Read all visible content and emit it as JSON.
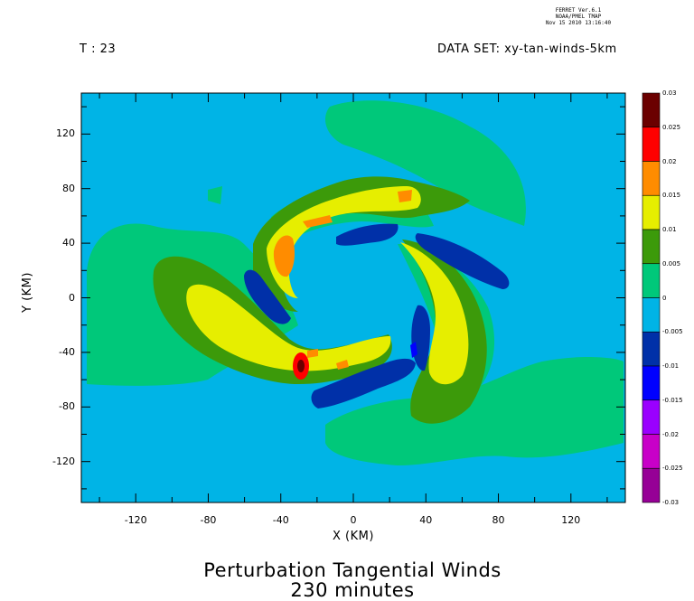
{
  "header": {
    "ferret_line1": "FERRET Ver.6.1",
    "ferret_line2": "NOAA/PMEL TMAP",
    "ferret_line3": "Nov 15 2010 13:16:40",
    "time_label": "T : 23",
    "dataset_label": "DATA SET: xy-tan-winds-5km"
  },
  "chart_data": {
    "type": "heatmap",
    "title": "Perturbation Tangential Winds",
    "subtitle": "230 minutes",
    "xlabel": "X (KM)",
    "ylabel": "Y (KM)",
    "xlim": [
      -150,
      150
    ],
    "ylim": [
      -150,
      150
    ],
    "x_ticks": [
      -120,
      -80,
      -40,
      0,
      40,
      80,
      120
    ],
    "y_ticks": [
      120,
      80,
      40,
      0,
      -40,
      -80,
      -120
    ],
    "x_tick_labels": [
      "-120",
      "-80",
      "-40",
      "0",
      "40",
      "80",
      "120"
    ],
    "y_tick_labels": [
      "120",
      "80",
      "40",
      "0",
      "-40",
      "-80",
      "-120"
    ],
    "colorbar": {
      "levels": [
        "0.03",
        "0.025",
        "0.02",
        "0.015",
        "0.01",
        "0.005",
        "0",
        "-0.005",
        "-0.01",
        "-0.015",
        "-0.02",
        "-0.025",
        "-0.03"
      ],
      "colors": [
        "#6b0000",
        "#ff0000",
        "#ff8c00",
        "#e6ee00",
        "#3c9a0a",
        "#00c87a",
        "#00b4e6",
        "#0030a8",
        "#0000ff",
        "#9a00ff",
        "#c800c8",
        "#960096"
      ]
    },
    "field_colors": {
      "background": "#00b4e6",
      "positive_weak": "#00c87a",
      "positive_mid": "#3c9a0a",
      "positive_strong": "#e6ee00",
      "positive_high": "#ff8c00",
      "positive_peak": "#ff0000",
      "positive_max": "#6b0000",
      "negative_mid": "#0030a8",
      "negative_strong": "#0000ff"
    }
  }
}
